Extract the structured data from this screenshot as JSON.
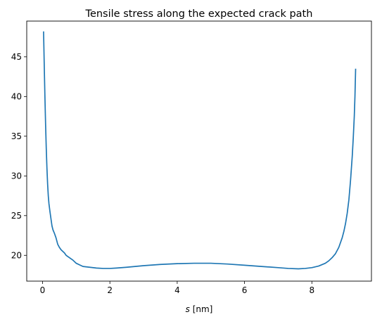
{
  "chart_data": {
    "type": "line",
    "title": "Tensile stress along the expected crack path",
    "xlabel_var": "s",
    "xlabel_unit": " [nm]",
    "ylabel": "",
    "xlim": [
      -0.47,
      9.77
    ],
    "ylim": [
      16.75,
      49.5
    ],
    "xticks": [
      0,
      2,
      4,
      6,
      8
    ],
    "yticks": [
      20,
      25,
      30,
      35,
      40,
      45
    ],
    "grid": false,
    "line_color": "#1f77b4",
    "series": [
      {
        "x": [
          0.03,
          0.05,
          0.07,
          0.09,
          0.11,
          0.13,
          0.15,
          0.17,
          0.19,
          0.22,
          0.25,
          0.28,
          0.31,
          0.35,
          0.4,
          0.45,
          0.5,
          0.55,
          0.6,
          0.65,
          0.7,
          0.8,
          0.9,
          1.0,
          1.1,
          1.2,
          1.4,
          1.6,
          1.8,
          2.0,
          2.2,
          2.5,
          3.0,
          3.5,
          4.0,
          4.5,
          5.0,
          5.5,
          6.0,
          6.5,
          7.0,
          7.3,
          7.6,
          7.8,
          8.0,
          8.2,
          8.4,
          8.5,
          8.6,
          8.7,
          8.8,
          8.9,
          8.95,
          9.0,
          9.05,
          9.1,
          9.15,
          9.2,
          9.23,
          9.26,
          9.28,
          9.3
        ],
        "y": [
          48.2,
          44.0,
          40.0,
          36.5,
          33.5,
          31.0,
          29.0,
          27.5,
          26.5,
          25.5,
          24.6,
          23.7,
          23.2,
          22.8,
          22.2,
          21.4,
          21.0,
          20.7,
          20.5,
          20.3,
          20.0,
          19.7,
          19.4,
          19.0,
          18.8,
          18.6,
          18.5,
          18.4,
          18.35,
          18.35,
          18.4,
          18.5,
          18.7,
          18.85,
          18.95,
          19.0,
          19.0,
          18.9,
          18.75,
          18.6,
          18.45,
          18.35,
          18.3,
          18.35,
          18.45,
          18.65,
          19.0,
          19.3,
          19.7,
          20.2,
          21.0,
          22.2,
          23.0,
          24.0,
          25.3,
          27.0,
          29.5,
          32.5,
          34.8,
          37.5,
          40.0,
          43.5
        ]
      }
    ]
  }
}
